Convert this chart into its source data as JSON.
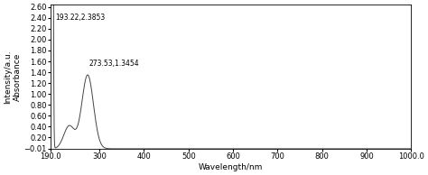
{
  "title": "",
  "xlabel": "Wavelength/nm",
  "ylabel": "Intensity/a.u.\nAbsorbance",
  "xlim": [
    190.0,
    1000.0
  ],
  "ylim": [
    -0.01,
    2.65
  ],
  "yticks": [
    -0.01,
    0.2,
    0.4,
    0.6,
    0.8,
    1.0,
    1.2,
    1.4,
    1.6,
    1.8,
    2.0,
    2.2,
    2.4,
    2.6
  ],
  "xticks": [
    190.0,
    300,
    400,
    500,
    600,
    700,
    800,
    900,
    1000.0
  ],
  "peak1_x": 193.22,
  "peak1_y": 2.3853,
  "peak1_label": "193.22,2.3853",
  "peak2_x": 273.53,
  "peak2_y": 1.3454,
  "peak2_label": "273.53,1.3454",
  "line_color": "#444444",
  "annotation_fontsize": 5.5,
  "background_color": "#ffffff",
  "tick_fontsize": 6,
  "label_fontsize": 6.5
}
